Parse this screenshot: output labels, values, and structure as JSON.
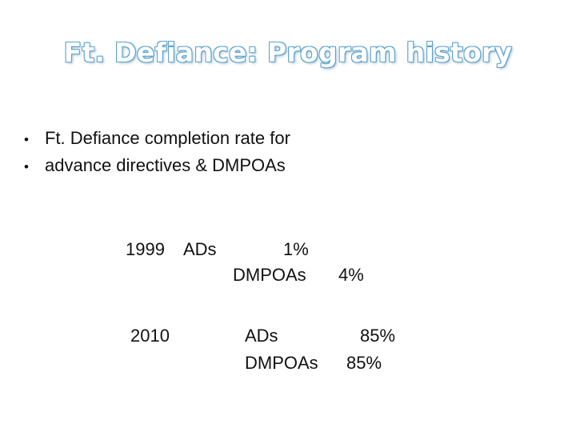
{
  "title": "Ft. Defiance: Program history",
  "bullets": [
    "Ft. Defiance completion rate for",
    "advance directives & DMPOAs"
  ],
  "bullet_glyph": "•",
  "history": {
    "rows": [
      {
        "year": "1999",
        "ad_label": "ADs",
        "ad_value": "1%",
        "dmpoa_label": "DMPOAs",
        "dmpoa_value": "4%"
      },
      {
        "year": "2010",
        "ad_label": "ADs",
        "ad_value": "85%",
        "dmpoa_label": "DMPOAs",
        "dmpoa_value": "85%"
      }
    ]
  },
  "colors": {
    "title_outline": "#5ba3cf",
    "text": "#111111",
    "background": "#ffffff"
  }
}
